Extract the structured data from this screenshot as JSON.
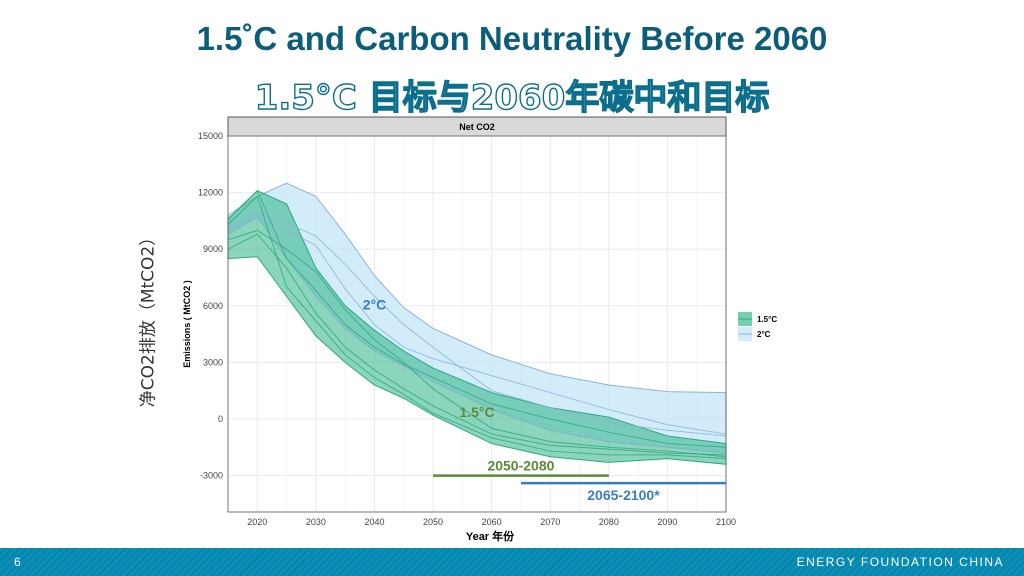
{
  "title": "1.5˚C and Carbon Neutrality Before 2060",
  "subtitle": "1.5°C 目标与2060年碳中和目标",
  "footer": {
    "page": "6",
    "org": "ENERGY FOUNDATION CHINA"
  },
  "colors": {
    "title": "#0b5e7a",
    "green": "#3cb98f",
    "blue": "#bfe4f7",
    "green_text": "#5a8a3a",
    "blue_text": "#3a7cc4",
    "footer": "#0a8db5"
  },
  "chart_data": {
    "type": "area",
    "panel_title": "Net CO2",
    "xlabel": "Year 年份",
    "ylabel": "Emissions ( MtCO2 )",
    "ylabel_cn": "净CO2排放（MtCO2）",
    "xlim": [
      2015,
      2100
    ],
    "ylim": [
      -4930,
      15000
    ],
    "xticks": [
      2020,
      2030,
      2040,
      2050,
      2060,
      2070,
      2080,
      2090,
      2100
    ],
    "yticks": [
      -3000,
      0,
      3000,
      6000,
      9000,
      12000,
      15000
    ],
    "grid": true,
    "legend": {
      "position": "right",
      "entries": [
        "1.5°C",
        "2°C"
      ]
    },
    "x": [
      2015,
      2020,
      2025,
      2030,
      2035,
      2040,
      2045,
      2050,
      2060,
      2070,
      2080,
      2090,
      2100
    ],
    "series": [
      {
        "name": "2°C",
        "color": "#bfe4f7",
        "line": "#8fb3d4",
        "upper": [
          10800,
          11800,
          12500,
          11800,
          9800,
          7600,
          5900,
          4800,
          3400,
          2400,
          1800,
          1450,
          1400
        ],
        "lower": [
          9800,
          10700,
          8500,
          6500,
          4800,
          3600,
          2800,
          2000,
          500,
          -600,
          -1200,
          -1500,
          -1800
        ],
        "lines": [
          [
            10200,
            10900,
            10400,
            9700,
            8200,
            6500,
            5000,
            3800,
            1500,
            600,
            -200,
            -600,
            -900
          ],
          [
            10000,
            10700,
            10000,
            9200,
            6900,
            5000,
            3800,
            3200,
            2300,
            1400,
            500,
            -300,
            -800
          ],
          [
            9800,
            10700,
            8500,
            6500,
            4800,
            3600,
            2800,
            2000,
            500,
            -600,
            -1200,
            -1500,
            -1800
          ]
        ]
      },
      {
        "name": "1.5°C",
        "color": "#3cb98f",
        "line": "#2aa980",
        "upper": [
          10600,
          12100,
          11400,
          8000,
          6000,
          4700,
          3600,
          2700,
          1400,
          600,
          100,
          -900,
          -1300
        ],
        "lower": [
          8500,
          8600,
          6500,
          4400,
          3000,
          1800,
          1100,
          200,
          -1300,
          -2000,
          -2300,
          -2100,
          -2400
        ],
        "lines": [
          [
            10600,
            12100,
            8500,
            6800,
            5000,
            3800,
            2900,
            2200,
            800,
            0,
            -700,
            -1300,
            -1500
          ],
          [
            9500,
            10000,
            9000,
            7800,
            5800,
            4200,
            3000,
            1600,
            -500,
            -1200,
            -1500,
            -1700,
            -2000
          ],
          [
            9000,
            9800,
            8000,
            5600,
            3800,
            2600,
            1600,
            700,
            -800,
            -1400,
            -1600,
            -1800,
            -1900
          ],
          [
            10300,
            11800,
            7000,
            5200,
            3400,
            2200,
            1300,
            300,
            -1000,
            -1700,
            -1900,
            -1900,
            -2100
          ]
        ]
      }
    ],
    "annotations": [
      {
        "text": "2°C",
        "x": 2040,
        "y": 5800,
        "color": "#3a7cc4"
      },
      {
        "text": "1.5°C",
        "x": 2057.5,
        "y": 100,
        "color": "#5a8a3a"
      }
    ],
    "ranges": [
      {
        "label": "2050-2080",
        "from": 2050,
        "to": 2080,
        "y": -3000,
        "color": "#5a8a3a",
        "label_pos": "above"
      },
      {
        "label": "2065-2100*",
        "from": 2065,
        "to": 2100,
        "y": -3400,
        "color": "#3a7cc4",
        "label_pos": "below"
      }
    ]
  }
}
